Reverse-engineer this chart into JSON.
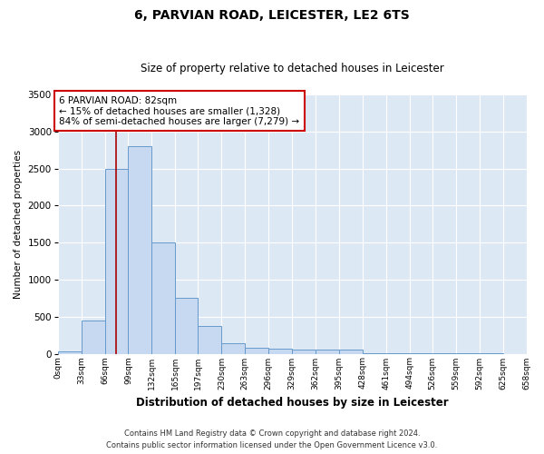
{
  "title": "6, PARVIAN ROAD, LEICESTER, LE2 6TS",
  "subtitle": "Size of property relative to detached houses in Leicester",
  "xlabel": "Distribution of detached houses by size in Leicester",
  "ylabel": "Number of detached properties",
  "annotation_line1": "6 PARVIAN ROAD: 82sqm",
  "annotation_line2": "← 15% of detached houses are smaller (1,328)",
  "annotation_line3": "84% of semi-detached houses are larger (7,279) →",
  "property_size": 82,
  "bin_edges": [
    0,
    33,
    66,
    99,
    132,
    165,
    197,
    230,
    263,
    296,
    329,
    362,
    395,
    428,
    461,
    494,
    526,
    559,
    592,
    625,
    658
  ],
  "bar_heights": [
    25,
    450,
    2500,
    2800,
    1500,
    750,
    380,
    145,
    80,
    65,
    60,
    55,
    50,
    8,
    3,
    2,
    2,
    1,
    1,
    0
  ],
  "bar_color": "#c6d9f0",
  "bar_edge_color": "#6699cc",
  "vline_color": "#aa0000",
  "annotation_box_color": "#cc0000",
  "plot_bg_color": "#dde8f5",
  "ylim": [
    0,
    3500
  ],
  "yticks": [
    0,
    500,
    1000,
    1500,
    2000,
    2500,
    3000,
    3500
  ],
  "footer_line1": "Contains HM Land Registry data © Crown copyright and database right 2024.",
  "footer_line2": "Contains public sector information licensed under the Open Government Licence v3.0."
}
